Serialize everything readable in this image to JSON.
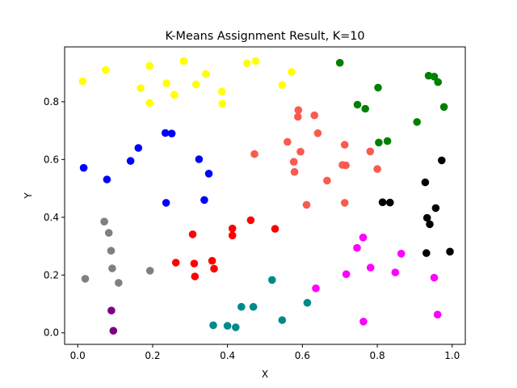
{
  "chart_data": {
    "type": "scatter",
    "title": "K-Means Assignment Result, K=10",
    "xlabel": "X",
    "ylabel": "Y",
    "xlim": [
      -0.035,
      1.035
    ],
    "ylim": [
      -0.04,
      0.99
    ],
    "xticks": [
      0.0,
      0.2,
      0.4,
      0.6,
      0.8,
      1.0
    ],
    "xtick_labels": [
      "0.0",
      "0.2",
      "0.4",
      "0.6",
      "0.8",
      "1.0"
    ],
    "yticks": [
      0.0,
      0.2,
      0.4,
      0.6,
      0.8
    ],
    "ytick_labels": [
      "0.0",
      "0.2",
      "0.4",
      "0.6",
      "0.8"
    ],
    "grid": false,
    "series": [
      {
        "color": "#ffff00",
        "points": [
          [
            0.013,
            0.871
          ],
          [
            0.075,
            0.91
          ],
          [
            0.168,
            0.847
          ],
          [
            0.192,
            0.924
          ],
          [
            0.192,
            0.796
          ],
          [
            0.237,
            0.864
          ],
          [
            0.258,
            0.824
          ],
          [
            0.283,
            0.941
          ],
          [
            0.316,
            0.86
          ],
          [
            0.342,
            0.896
          ],
          [
            0.385,
            0.835
          ],
          [
            0.386,
            0.793
          ],
          [
            0.452,
            0.933
          ],
          [
            0.475,
            0.941
          ],
          [
            0.546,
            0.858
          ],
          [
            0.571,
            0.903
          ]
        ]
      },
      {
        "color": "#008000",
        "points": [
          [
            0.7,
            0.935
          ],
          [
            0.747,
            0.79
          ],
          [
            0.768,
            0.776
          ],
          [
            0.802,
            0.849
          ],
          [
            0.804,
            0.659
          ],
          [
            0.827,
            0.664
          ],
          [
            0.906,
            0.73
          ],
          [
            0.937,
            0.89
          ],
          [
            0.952,
            0.887
          ],
          [
            0.962,
            0.868
          ],
          [
            0.978,
            0.782
          ]
        ]
      },
      {
        "color": "#0000ff",
        "points": [
          [
            0.016,
            0.571
          ],
          [
            0.078,
            0.531
          ],
          [
            0.141,
            0.595
          ],
          [
            0.162,
            0.64
          ],
          [
            0.234,
            0.692
          ],
          [
            0.251,
            0.69
          ],
          [
            0.236,
            0.45
          ],
          [
            0.324,
            0.601
          ],
          [
            0.35,
            0.551
          ],
          [
            0.338,
            0.46
          ]
        ]
      },
      {
        "color": "#fa5a50",
        "points": [
          [
            0.472,
            0.619
          ],
          [
            0.56,
            0.661
          ],
          [
            0.589,
            0.771
          ],
          [
            0.588,
            0.748
          ],
          [
            0.595,
            0.627
          ],
          [
            0.577,
            0.592
          ],
          [
            0.579,
            0.557
          ],
          [
            0.632,
            0.753
          ],
          [
            0.641,
            0.691
          ],
          [
            0.611,
            0.443
          ],
          [
            0.666,
            0.527
          ],
          [
            0.713,
            0.651
          ],
          [
            0.707,
            0.581
          ],
          [
            0.716,
            0.58
          ],
          [
            0.713,
            0.45
          ],
          [
            0.781,
            0.628
          ],
          [
            0.8,
            0.567
          ]
        ]
      },
      {
        "color": "#000000",
        "points": [
          [
            0.972,
            0.597
          ],
          [
            0.928,
            0.521
          ],
          [
            0.814,
            0.452
          ],
          [
            0.834,
            0.451
          ],
          [
            0.956,
            0.432
          ],
          [
            0.933,
            0.398
          ],
          [
            0.94,
            0.376
          ],
          [
            0.931,
            0.276
          ],
          [
            0.994,
            0.281
          ]
        ]
      },
      {
        "color": "#808080",
        "points": [
          [
            0.071,
            0.385
          ],
          [
            0.083,
            0.346
          ],
          [
            0.089,
            0.284
          ],
          [
            0.092,
            0.223
          ],
          [
            0.02,
            0.187
          ],
          [
            0.109,
            0.173
          ],
          [
            0.193,
            0.215
          ]
        ]
      },
      {
        "color": "#ff0000",
        "points": [
          [
            0.307,
            0.341
          ],
          [
            0.413,
            0.361
          ],
          [
            0.413,
            0.337
          ],
          [
            0.462,
            0.39
          ],
          [
            0.527,
            0.36
          ],
          [
            0.262,
            0.243
          ],
          [
            0.311,
            0.24
          ],
          [
            0.359,
            0.249
          ],
          [
            0.364,
            0.222
          ],
          [
            0.313,
            0.195
          ]
        ]
      },
      {
        "color": "#ff00ff",
        "points": [
          [
            0.762,
            0.33
          ],
          [
            0.746,
            0.294
          ],
          [
            0.864,
            0.274
          ],
          [
            0.782,
            0.226
          ],
          [
            0.848,
            0.209
          ],
          [
            0.717,
            0.203
          ],
          [
            0.952,
            0.191
          ],
          [
            0.636,
            0.154
          ],
          [
            0.763,
            0.039
          ],
          [
            0.961,
            0.063
          ]
        ]
      },
      {
        "color": "#008b8b",
        "points": [
          [
            0.519,
            0.183
          ],
          [
            0.613,
            0.104
          ],
          [
            0.437,
            0.09
          ],
          [
            0.469,
            0.09
          ],
          [
            0.546,
            0.044
          ],
          [
            0.362,
            0.026
          ],
          [
            0.4,
            0.024
          ],
          [
            0.422,
            0.019
          ]
        ]
      },
      {
        "color": "#800080",
        "points": [
          [
            0.09,
            0.077
          ],
          [
            0.095,
            0.007
          ]
        ]
      }
    ]
  }
}
